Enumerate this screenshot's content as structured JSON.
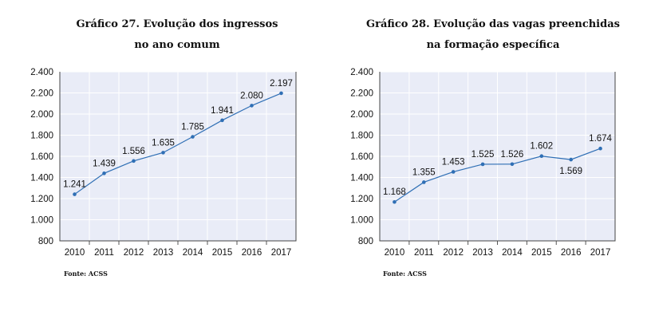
{
  "chart_data": [
    {
      "type": "line",
      "title": "Gráfico 27. Evolução dos ingressos no ano comum",
      "title_lines": [
        "Gráfico 27. Evolução dos ingressos",
        "no ano comum"
      ],
      "categories": [
        "2010",
        "2011",
        "2012",
        "2013",
        "2014",
        "2015",
        "2016",
        "2017"
      ],
      "values": [
        1241,
        1439,
        1556,
        1635,
        1785,
        1941,
        2080,
        2197
      ],
      "data_labels": [
        "1.241",
        "1.439",
        "1.556",
        "1.635",
        "1.785",
        "1.941",
        "2.080",
        "2.197"
      ],
      "ylim": [
        800,
        2400
      ],
      "yticks": [
        800,
        1000,
        1200,
        1400,
        1600,
        1800,
        2000,
        2200,
        2400
      ],
      "ytick_labels": [
        "800",
        "1.000",
        "1.200",
        "1.400",
        "1.600",
        "1.800",
        "2.000",
        "2.200",
        "2.400"
      ],
      "xlabel": "",
      "ylabel": "",
      "grid": true,
      "source": "Fonte: ACSS",
      "color": "#2f6fb5"
    },
    {
      "type": "line",
      "title": "Gráfico 28. Evolução das vagas preenchidas na formação específica",
      "title_lines": [
        "Gráfico 28. Evolução das vagas preenchidas",
        "na formação específica"
      ],
      "categories": [
        "2010",
        "2011",
        "2012",
        "2013",
        "2014",
        "2015",
        "2016",
        "2017"
      ],
      "values": [
        1168,
        1355,
        1453,
        1525,
        1526,
        1602,
        1569,
        1674
      ],
      "data_labels": [
        "1.168",
        "1.355",
        "1.453",
        "1.525",
        "1.526",
        "1.602",
        "1.569",
        "1.674"
      ],
      "ylim": [
        800,
        2400
      ],
      "yticks": [
        800,
        1000,
        1200,
        1400,
        1600,
        1800,
        2000,
        2200,
        2400
      ],
      "ytick_labels": [
        "800",
        "1.000",
        "1.200",
        "1.400",
        "1.600",
        "1.800",
        "2.000",
        "2.200",
        "2.400"
      ],
      "xlabel": "",
      "ylabel": "",
      "grid": true,
      "source": "Fonte: ACSS",
      "color": "#2f6fb5"
    }
  ]
}
